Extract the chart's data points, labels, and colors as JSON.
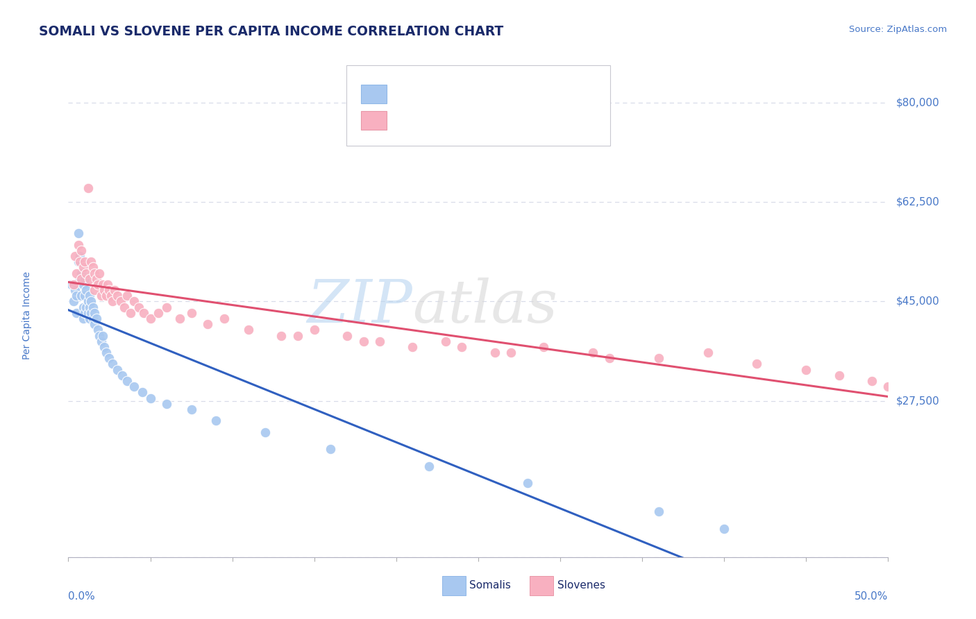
{
  "title": "SOMALI VS SLOVENE PER CAPITA INCOME CORRELATION CHART",
  "source_text": "Source: ZipAtlas.com",
  "ylabel": "Per Capita Income",
  "xmin": 0.0,
  "xmax": 0.5,
  "ymin": 0,
  "ymax": 85000,
  "yticks": [
    0,
    27500,
    45000,
    62500,
    80000
  ],
  "ytick_labels": [
    "",
    "$27,500",
    "$45,000",
    "$62,500",
    "$80,000"
  ],
  "somali_color": "#a8c8f0",
  "slovene_color": "#f8b0c0",
  "somali_line_color": "#3060c0",
  "slovene_line_color": "#e05070",
  "trendline_extend_color": "#c8c8c8",
  "background_color": "#ffffff",
  "grid_color": "#d8dce8",
  "title_color": "#1a2a6a",
  "axis_label_color": "#4878c8",
  "watermark_zip_color": "#b8d4f0",
  "watermark_atlas_color": "#d8d8d8",
  "somali_x": [
    0.002,
    0.003,
    0.004,
    0.005,
    0.005,
    0.006,
    0.006,
    0.007,
    0.007,
    0.008,
    0.008,
    0.009,
    0.009,
    0.009,
    0.01,
    0.01,
    0.01,
    0.011,
    0.011,
    0.012,
    0.012,
    0.013,
    0.013,
    0.013,
    0.014,
    0.014,
    0.015,
    0.015,
    0.016,
    0.016,
    0.017,
    0.018,
    0.019,
    0.02,
    0.021,
    0.022,
    0.023,
    0.025,
    0.027,
    0.03,
    0.033,
    0.036,
    0.04,
    0.045,
    0.05,
    0.06,
    0.075,
    0.09,
    0.12,
    0.16,
    0.22,
    0.28,
    0.36,
    0.4
  ],
  "somali_y": [
    48000,
    45000,
    47000,
    46000,
    43000,
    57000,
    52000,
    53000,
    49000,
    50000,
    46000,
    48000,
    44000,
    42000,
    49000,
    46000,
    43000,
    47000,
    44000,
    45000,
    43000,
    46000,
    44000,
    42000,
    45000,
    43000,
    44000,
    42000,
    43000,
    41000,
    42000,
    40000,
    39000,
    38000,
    39000,
    37000,
    36000,
    35000,
    34000,
    33000,
    32000,
    31000,
    30000,
    29000,
    28000,
    27000,
    26000,
    24000,
    22000,
    19000,
    16000,
    13000,
    8000,
    5000
  ],
  "slovene_x": [
    0.003,
    0.004,
    0.005,
    0.006,
    0.007,
    0.008,
    0.008,
    0.009,
    0.01,
    0.011,
    0.012,
    0.013,
    0.014,
    0.015,
    0.016,
    0.016,
    0.017,
    0.018,
    0.019,
    0.02,
    0.021,
    0.022,
    0.023,
    0.024,
    0.025,
    0.026,
    0.027,
    0.028,
    0.03,
    0.032,
    0.034,
    0.036,
    0.038,
    0.04,
    0.043,
    0.046,
    0.05,
    0.055,
    0.06,
    0.068,
    0.075,
    0.085,
    0.095,
    0.11,
    0.13,
    0.15,
    0.17,
    0.19,
    0.21,
    0.23,
    0.26,
    0.29,
    0.32,
    0.36,
    0.39,
    0.42,
    0.45,
    0.47,
    0.49,
    0.5,
    0.24,
    0.27,
    0.33,
    0.18,
    0.14
  ],
  "slovene_y": [
    48000,
    53000,
    50000,
    55000,
    52000,
    54000,
    49000,
    51000,
    52000,
    50000,
    65000,
    49000,
    52000,
    51000,
    50000,
    47000,
    49000,
    48000,
    50000,
    46000,
    48000,
    47000,
    46000,
    48000,
    47000,
    46000,
    45000,
    47000,
    46000,
    45000,
    44000,
    46000,
    43000,
    45000,
    44000,
    43000,
    42000,
    43000,
    44000,
    42000,
    43000,
    41000,
    42000,
    40000,
    39000,
    40000,
    39000,
    38000,
    37000,
    38000,
    36000,
    37000,
    36000,
    35000,
    36000,
    34000,
    33000,
    32000,
    31000,
    30000,
    37000,
    36000,
    35000,
    38000,
    39000
  ]
}
